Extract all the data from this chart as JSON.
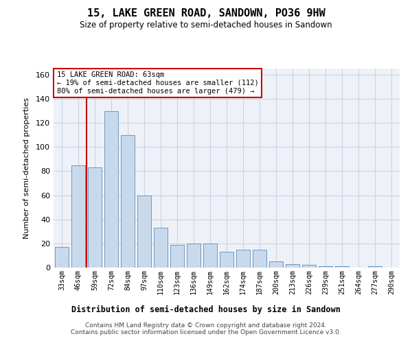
{
  "title": "15, LAKE GREEN ROAD, SANDOWN, PO36 9HW",
  "subtitle": "Size of property relative to semi-detached houses in Sandown",
  "xlabel": "Distribution of semi-detached houses by size in Sandown",
  "ylabel": "Number of semi-detached properties",
  "categories": [
    "33sqm",
    "46sqm",
    "59sqm",
    "72sqm",
    "84sqm",
    "97sqm",
    "110sqm",
    "123sqm",
    "136sqm",
    "149sqm",
    "162sqm",
    "174sqm",
    "187sqm",
    "200sqm",
    "213sqm",
    "226sqm",
    "239sqm",
    "251sqm",
    "264sqm",
    "277sqm",
    "290sqm"
  ],
  "values": [
    17,
    85,
    83,
    130,
    110,
    60,
    33,
    19,
    20,
    20,
    13,
    15,
    15,
    5,
    3,
    2,
    1,
    1,
    0,
    1,
    0
  ],
  "bar_color": "#c9d9ec",
  "bar_edge_color": "#5b8db8",
  "red_line_x": 1.5,
  "annotation_title": "15 LAKE GREEN ROAD: 63sqm",
  "annotation_line1": "← 19% of semi-detached houses are smaller (112)",
  "annotation_line2": "80% of semi-detached houses are larger (479) →",
  "annotation_box_color": "#ffffff",
  "annotation_box_edge_color": "#cc0000",
  "ylim": [
    0,
    165
  ],
  "yticks": [
    0,
    20,
    40,
    60,
    80,
    100,
    120,
    140,
    160
  ],
  "grid_color": "#c8d4e3",
  "background_color": "#eef2f8",
  "footer_line1": "Contains HM Land Registry data © Crown copyright and database right 2024.",
  "footer_line2": "Contains public sector information licensed under the Open Government Licence v3.0."
}
